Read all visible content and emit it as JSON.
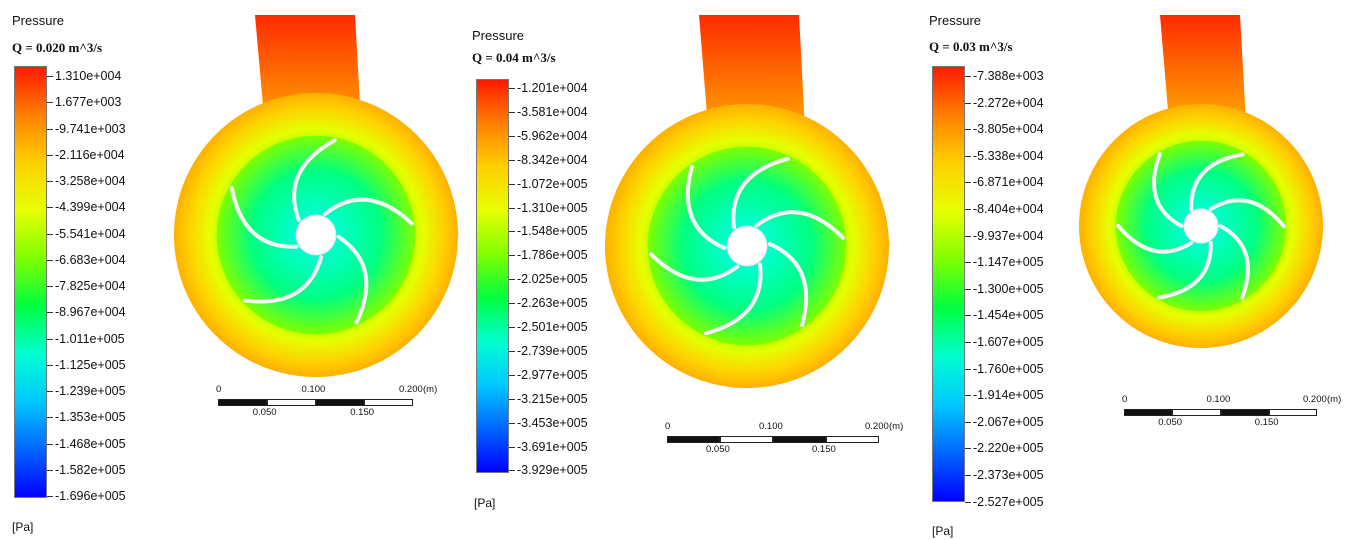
{
  "panels": [
    {
      "title": "Pressure",
      "flow": "Q = 0.020 m^3/s",
      "unit": "[Pa]",
      "ticks": [
        "1.310e+004",
        "1.677e+003",
        "-9.741e+003",
        "-2.116e+004",
        "-3.258e+004",
        "-4.399e+004",
        "-5.541e+004",
        "-6.683e+004",
        "-7.825e+004",
        "-8.967e+004",
        "-1.011e+005",
        "-1.125e+005",
        "-1.239e+005",
        "-1.353e+005",
        "-1.468e+005",
        "-1.582e+005",
        "-1.696e+005"
      ],
      "scale": {
        "top": [
          "0",
          "0.100",
          "0.200"
        ],
        "bottom": [
          "0.050",
          "0.150"
        ],
        "unit": "(m)"
      }
    },
    {
      "title": "Pressure",
      "flow": "Q = 0.04 m^3/s",
      "unit": "[Pa]",
      "ticks": [
        "-1.201e+004",
        "-3.581e+004",
        "-5.962e+004",
        "-8.342e+004",
        "-1.072e+005",
        "-1.310e+005",
        "-1.548e+005",
        "-1.786e+005",
        "-2.025e+005",
        "-2.263e+005",
        "-2.501e+005",
        "-2.739e+005",
        "-2.977e+005",
        "-3.215e+005",
        "-3.453e+005",
        "-3.691e+005",
        "-3.929e+005"
      ],
      "scale": {
        "top": [
          "0",
          "0.100",
          "0.200"
        ],
        "bottom": [
          "0.050",
          "0.150"
        ],
        "unit": "(m)"
      }
    },
    {
      "title": "Pressure",
      "flow": "Q = 0.03 m^3/s",
      "unit": "[Pa]",
      "ticks": [
        "-7.388e+003",
        "-2.272e+004",
        "-3.805e+004",
        "-5.338e+004",
        "-6.871e+004",
        "-8.404e+004",
        "-9.937e+004",
        "-1.147e+005",
        "-1.300e+005",
        "-1.454e+005",
        "-1.607e+005",
        "-1.760e+005",
        "-1.914e+005",
        "-2.067e+005",
        "-2.220e+005",
        "-2.373e+005",
        "-2.527e+005"
      ],
      "scale": {
        "top": [
          "0",
          "0.100",
          "0.200"
        ],
        "bottom": [
          "0.050",
          "0.150"
        ],
        "unit": "(m)"
      }
    }
  ],
  "colors": {
    "colormap": [
      "#0000ff",
      "#0066ff",
      "#00c8ff",
      "#00ffd0",
      "#00ff40",
      "#7fff00",
      "#e6ff00",
      "#ffd000",
      "#ff8000",
      "#ff1a00"
    ],
    "blade": "#f4f4f4",
    "hub": "#ffffff"
  }
}
